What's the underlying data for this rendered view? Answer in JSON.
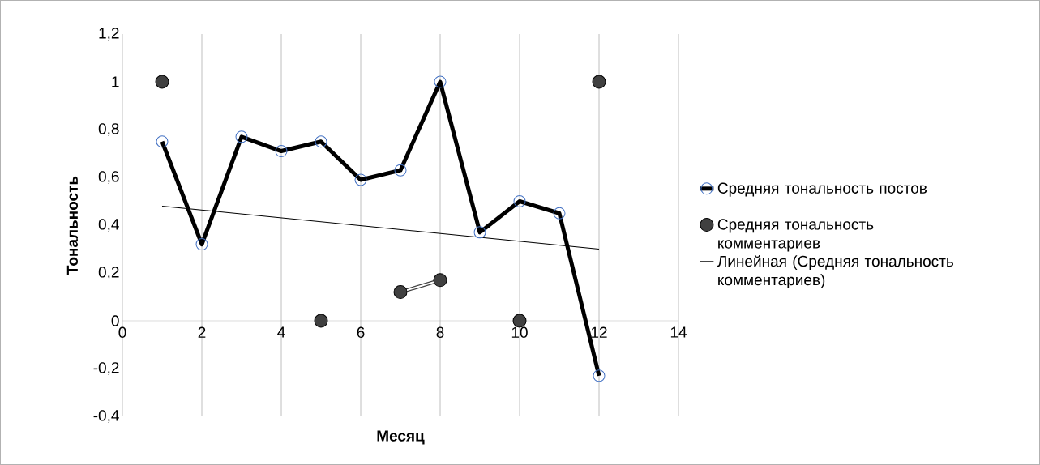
{
  "chart_data": {
    "type": "line",
    "xlabel": "Месяц",
    "ylabel": "Тональность",
    "x": [
      1,
      2,
      3,
      4,
      5,
      6,
      7,
      8,
      9,
      10,
      11,
      12
    ],
    "series": [
      {
        "name": "Средняя тональность постов",
        "color": "#000000",
        "marker": "circle",
        "line_style": "solid",
        "values": [
          0.75,
          0.32,
          0.77,
          0.71,
          0.75,
          0.59,
          0.63,
          1.0,
          0.37,
          0.5,
          0.45,
          -0.23
        ]
      },
      {
        "name": "Средняя тональность комментариев",
        "color": "#404040",
        "marker": "circle",
        "line_style": "solid",
        "values": [
          1,
          null,
          null,
          null,
          0,
          null,
          0.12,
          0.17,
          null,
          0,
          null,
          1
        ]
      },
      {
        "name": "Линейная (Средняя тональность комментариев)",
        "color": "#000000",
        "marker": "none",
        "line_style": "solid",
        "x": [
          1,
          12
        ],
        "values": [
          0.48,
          0.3
        ]
      }
    ],
    "xlim": [
      0,
      14
    ],
    "xticks": [
      0,
      2,
      4,
      6,
      8,
      10,
      12,
      14
    ],
    "ylim": [
      -0.4,
      1.2
    ],
    "yticks": [
      {
        "value": -0.4,
        "label": "-0,4"
      },
      {
        "value": -0.2,
        "label": "-0,2"
      },
      {
        "value": 0,
        "label": "0"
      },
      {
        "value": 0.2,
        "label": "0,2"
      },
      {
        "value": 0.4,
        "label": "0,4"
      },
      {
        "value": 0.6,
        "label": "0,6"
      },
      {
        "value": 0.8,
        "label": "0,8"
      },
      {
        "value": 1,
        "label": "1"
      },
      {
        "value": 1.2,
        "label": "1,2"
      }
    ],
    "grid": "x",
    "legend": "right"
  }
}
